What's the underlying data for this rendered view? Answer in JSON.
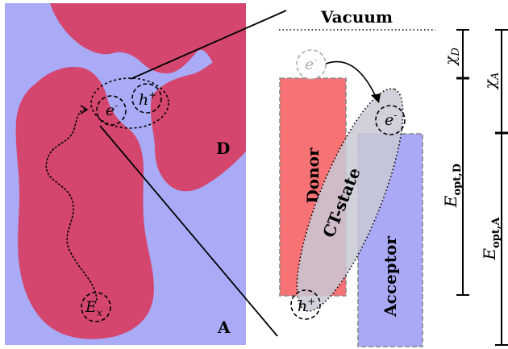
{
  "labels": {
    "vacuum": "Vacuum",
    "donor": "Donor",
    "acceptor": "Acceptor",
    "ct_state": "CT-state",
    "region_d": "D",
    "region_a": "A",
    "electron": "e",
    "electron_sup": "-",
    "hole": "h",
    "hole_sup": "+",
    "exciton": "E",
    "exciton_sub": "x",
    "chi": "χ",
    "chi_d_sub": "D",
    "chi_a_sub": "A",
    "e_opt": "E",
    "e_opt_d_sub": "opt,D",
    "e_opt_a_sub": "opt,A"
  },
  "colors": {
    "donor_phase": "#d4466e",
    "acceptor_phase": "#a9abf7",
    "donor_bar": "#f77274",
    "acceptor_bar": "#aaa9f5",
    "ct_ellipse": "#c9c9d6",
    "outline_dashed": "#888888"
  }
}
